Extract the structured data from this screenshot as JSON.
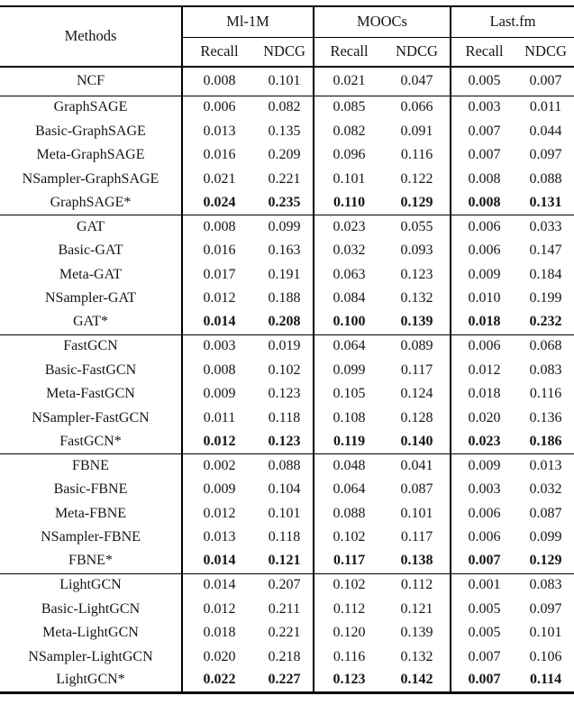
{
  "page": {
    "background": "#ffffff",
    "text_color": "#161616",
    "rule_color": "#000000"
  },
  "table": {
    "type": "table",
    "methods_header": "Methods",
    "datasets": [
      {
        "label": "Ml-1M"
      },
      {
        "label": "MOOCs"
      },
      {
        "label": "Last.fm"
      }
    ],
    "metrics": {
      "recall": "Recall",
      "ndcg": "NDCG"
    },
    "columns_per_dataset": [
      "Recall",
      "NDCG"
    ],
    "groups": [
      {
        "name": "NCF",
        "rows": [
          {
            "method": "NCF",
            "bold": false,
            "values": [
              "0.008",
              "0.101",
              "0.021",
              "0.047",
              "0.005",
              "0.007"
            ]
          }
        ]
      },
      {
        "name": "GraphSAGE",
        "rows": [
          {
            "method": "GraphSAGE",
            "bold": false,
            "values": [
              "0.006",
              "0.082",
              "0.085",
              "0.066",
              "0.003",
              "0.011"
            ]
          },
          {
            "method": "Basic-GraphSAGE",
            "bold": false,
            "values": [
              "0.013",
              "0.135",
              "0.082",
              "0.091",
              "0.007",
              "0.044"
            ]
          },
          {
            "method": "Meta-GraphSAGE",
            "bold": false,
            "values": [
              "0.016",
              "0.209",
              "0.096",
              "0.116",
              "0.007",
              "0.097"
            ]
          },
          {
            "method": "NSampler-GraphSAGE",
            "bold": false,
            "values": [
              "0.021",
              "0.221",
              "0.101",
              "0.122",
              "0.008",
              "0.088"
            ]
          },
          {
            "method": "GraphSAGE*",
            "bold": true,
            "values": [
              "0.024",
              "0.235",
              "0.110",
              "0.129",
              "0.008",
              "0.131"
            ]
          }
        ]
      },
      {
        "name": "GAT",
        "rows": [
          {
            "method": "GAT",
            "bold": false,
            "values": [
              "0.008",
              "0.099",
              "0.023",
              "0.055",
              "0.006",
              "0.033"
            ]
          },
          {
            "method": "Basic-GAT",
            "bold": false,
            "values": [
              "0.016",
              "0.163",
              "0.032",
              "0.093",
              "0.006",
              "0.147"
            ]
          },
          {
            "method": "Meta-GAT",
            "bold": false,
            "values": [
              "0.017",
              "0.191",
              "0.063",
              "0.123",
              "0.009",
              "0.184"
            ]
          },
          {
            "method": "NSampler-GAT",
            "bold": false,
            "values": [
              "0.012",
              "0.188",
              "0.084",
              "0.132",
              "0.010",
              "0.199"
            ]
          },
          {
            "method": "GAT*",
            "bold": true,
            "values": [
              "0.014",
              "0.208",
              "0.100",
              "0.139",
              "0.018",
              "0.232"
            ]
          }
        ]
      },
      {
        "name": "FastGCN",
        "rows": [
          {
            "method": "FastGCN",
            "bold": false,
            "values": [
              "0.003",
              "0.019",
              "0.064",
              "0.089",
              "0.006",
              "0.068"
            ]
          },
          {
            "method": "Basic-FastGCN",
            "bold": false,
            "values": [
              "0.008",
              "0.102",
              "0.099",
              "0.117",
              "0.012",
              "0.083"
            ]
          },
          {
            "method": "Meta-FastGCN",
            "bold": false,
            "values": [
              "0.009",
              "0.123",
              "0.105",
              "0.124",
              "0.018",
              "0.116"
            ]
          },
          {
            "method": "NSampler-FastGCN",
            "bold": false,
            "values": [
              "0.011",
              "0.118",
              "0.108",
              "0.128",
              "0.020",
              "0.136"
            ]
          },
          {
            "method": "FastGCN*",
            "bold": true,
            "values": [
              "0.012",
              "0.123",
              "0.119",
              "0.140",
              "0.023",
              "0.186"
            ]
          }
        ]
      },
      {
        "name": "FBNE",
        "rows": [
          {
            "method": "FBNE",
            "bold": false,
            "values": [
              "0.002",
              "0.088",
              "0.048",
              "0.041",
              "0.009",
              "0.013"
            ]
          },
          {
            "method": "Basic-FBNE",
            "bold": false,
            "values": [
              "0.009",
              "0.104",
              "0.064",
              "0.087",
              "0.003",
              "0.032"
            ]
          },
          {
            "method": "Meta-FBNE",
            "bold": false,
            "values": [
              "0.012",
              "0.101",
              "0.088",
              "0.101",
              "0.006",
              "0.087"
            ]
          },
          {
            "method": "NSampler-FBNE",
            "bold": false,
            "values": [
              "0.013",
              "0.118",
              "0.102",
              "0.117",
              "0.006",
              "0.099"
            ]
          },
          {
            "method": "FBNE*",
            "bold": true,
            "values": [
              "0.014",
              "0.121",
              "0.117",
              "0.138",
              "0.007",
              "0.129"
            ]
          }
        ]
      },
      {
        "name": "LightGCN",
        "rows": [
          {
            "method": "LightGCN",
            "bold": false,
            "values": [
              "0.014",
              "0.207",
              "0.102",
              "0.112",
              "0.001",
              "0.083"
            ]
          },
          {
            "method": "Basic-LightGCN",
            "bold": false,
            "values": [
              "0.012",
              "0.211",
              "0.112",
              "0.121",
              "0.005",
              "0.097"
            ]
          },
          {
            "method": "Meta-LightGCN",
            "bold": false,
            "values": [
              "0.018",
              "0.221",
              "0.120",
              "0.139",
              "0.005",
              "0.101"
            ]
          },
          {
            "method": "NSampler-LightGCN",
            "bold": false,
            "values": [
              "0.020",
              "0.218",
              "0.116",
              "0.132",
              "0.007",
              "0.106"
            ]
          },
          {
            "method": "LightGCN*",
            "bold": true,
            "values": [
              "0.022",
              "0.227",
              "0.123",
              "0.142",
              "0.007",
              "0.114"
            ]
          }
        ]
      }
    ]
  }
}
